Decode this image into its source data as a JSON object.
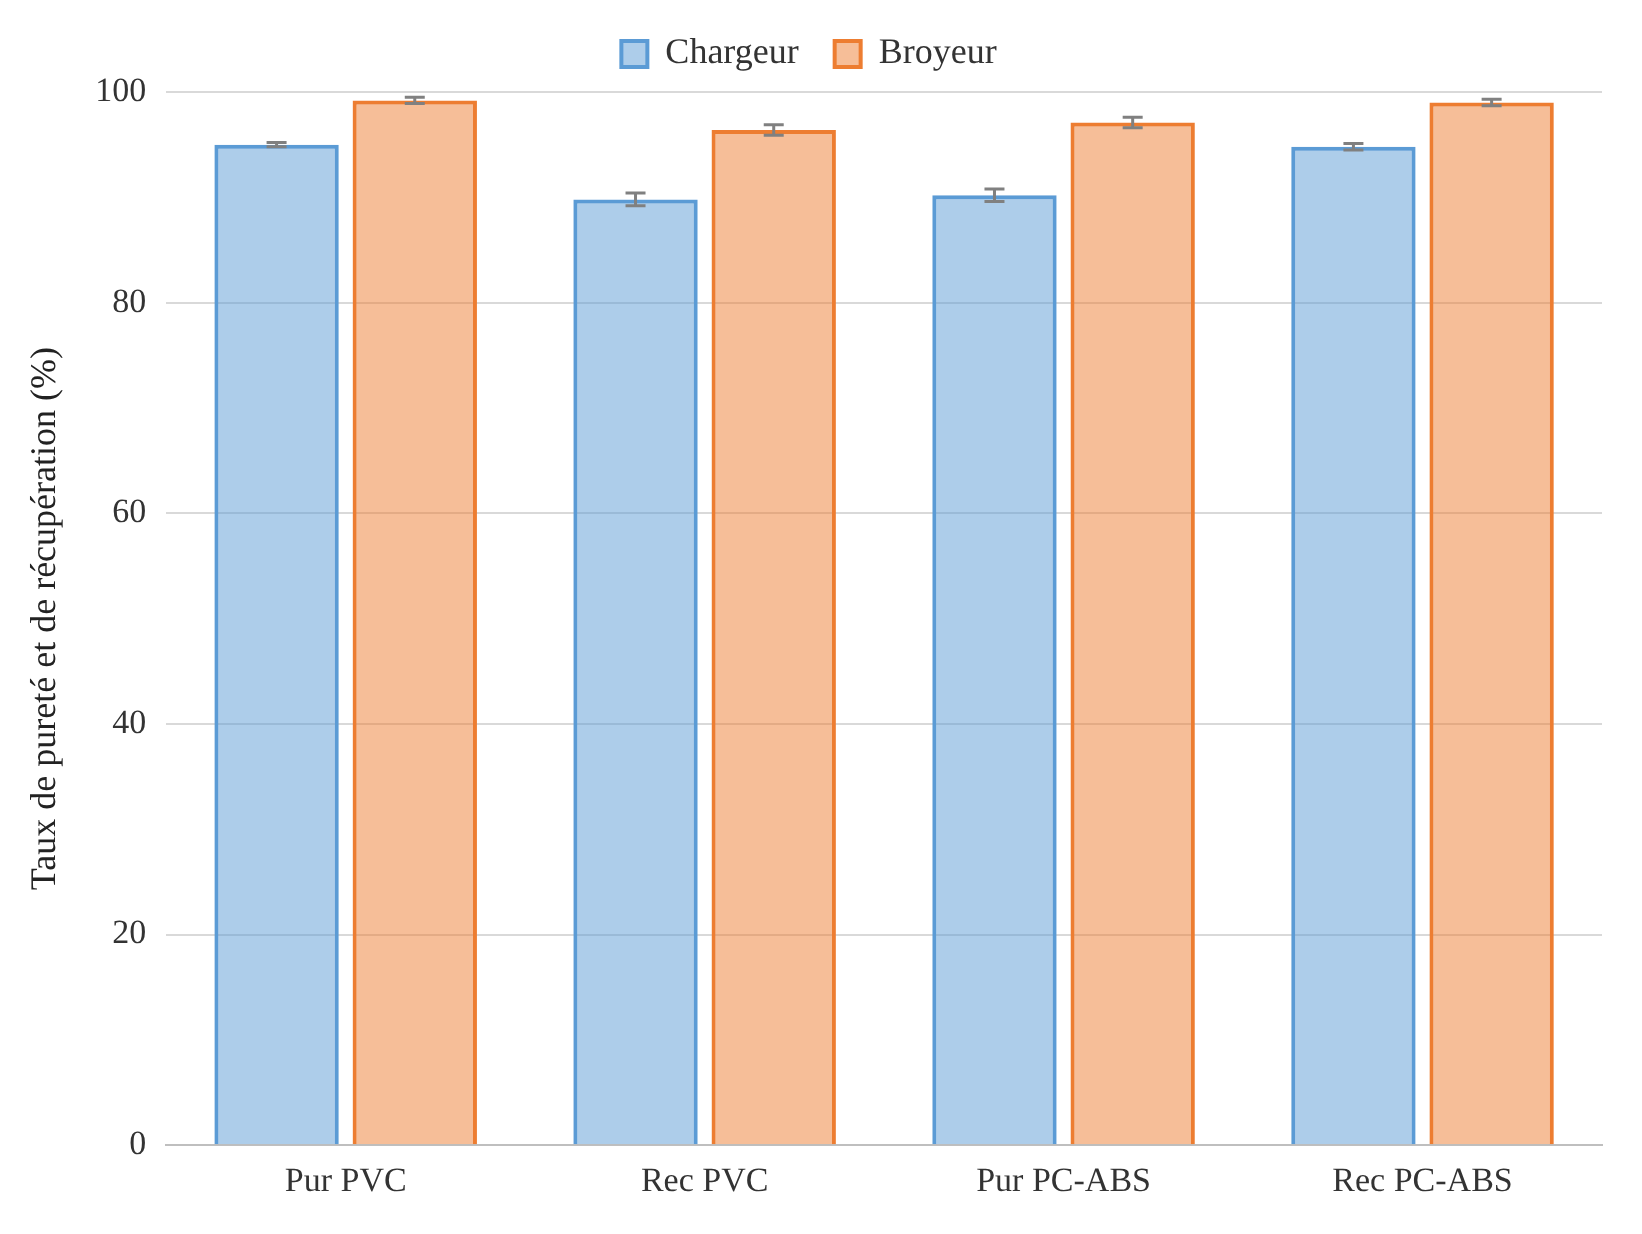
{
  "chart_data": {
    "type": "bar",
    "ylabel": "Taux de pureté et de récupération (%)",
    "categories": [
      "Pur PVC",
      "Rec PVC",
      "Pur PC-ABS",
      "Rec PC-ABS"
    ],
    "series": [
      {
        "name": "Chargeur",
        "color": "#5b9bd5",
        "values": [
          95.0,
          89.8,
          90.2,
          94.8
        ],
        "errors": [
          0.2,
          0.6,
          0.6,
          0.3
        ]
      },
      {
        "name": "Broyeur",
        "color": "#ed7d31",
        "values": [
          99.2,
          96.4,
          97.1,
          99.0
        ],
        "errors": [
          0.3,
          0.5,
          0.5,
          0.3
        ]
      }
    ],
    "ylim": [
      0,
      100
    ],
    "yticks": [
      0,
      20,
      40,
      60,
      80,
      100
    ],
    "grid": "y",
    "legend": "top"
  }
}
